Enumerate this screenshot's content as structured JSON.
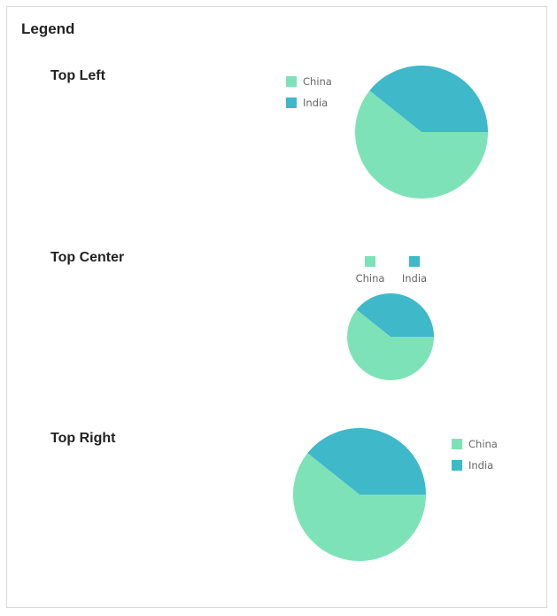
{
  "title": "Legend",
  "colors": {
    "China": "#7ee2b8",
    "India": "#3fb8c9"
  },
  "chart_data": [
    {
      "type": "pie",
      "title": "Top Left",
      "legend_position": "top-left",
      "categories": [
        "China",
        "India"
      ],
      "values": [
        60.7,
        39.3
      ]
    },
    {
      "type": "pie",
      "title": "Top Center",
      "legend_position": "top-center",
      "categories": [
        "China",
        "India"
      ],
      "values": [
        60.7,
        39.3
      ]
    },
    {
      "type": "pie",
      "title": "Top Right",
      "legend_position": "top-right",
      "categories": [
        "China",
        "India"
      ],
      "values": [
        60.7,
        39.3
      ]
    }
  ]
}
